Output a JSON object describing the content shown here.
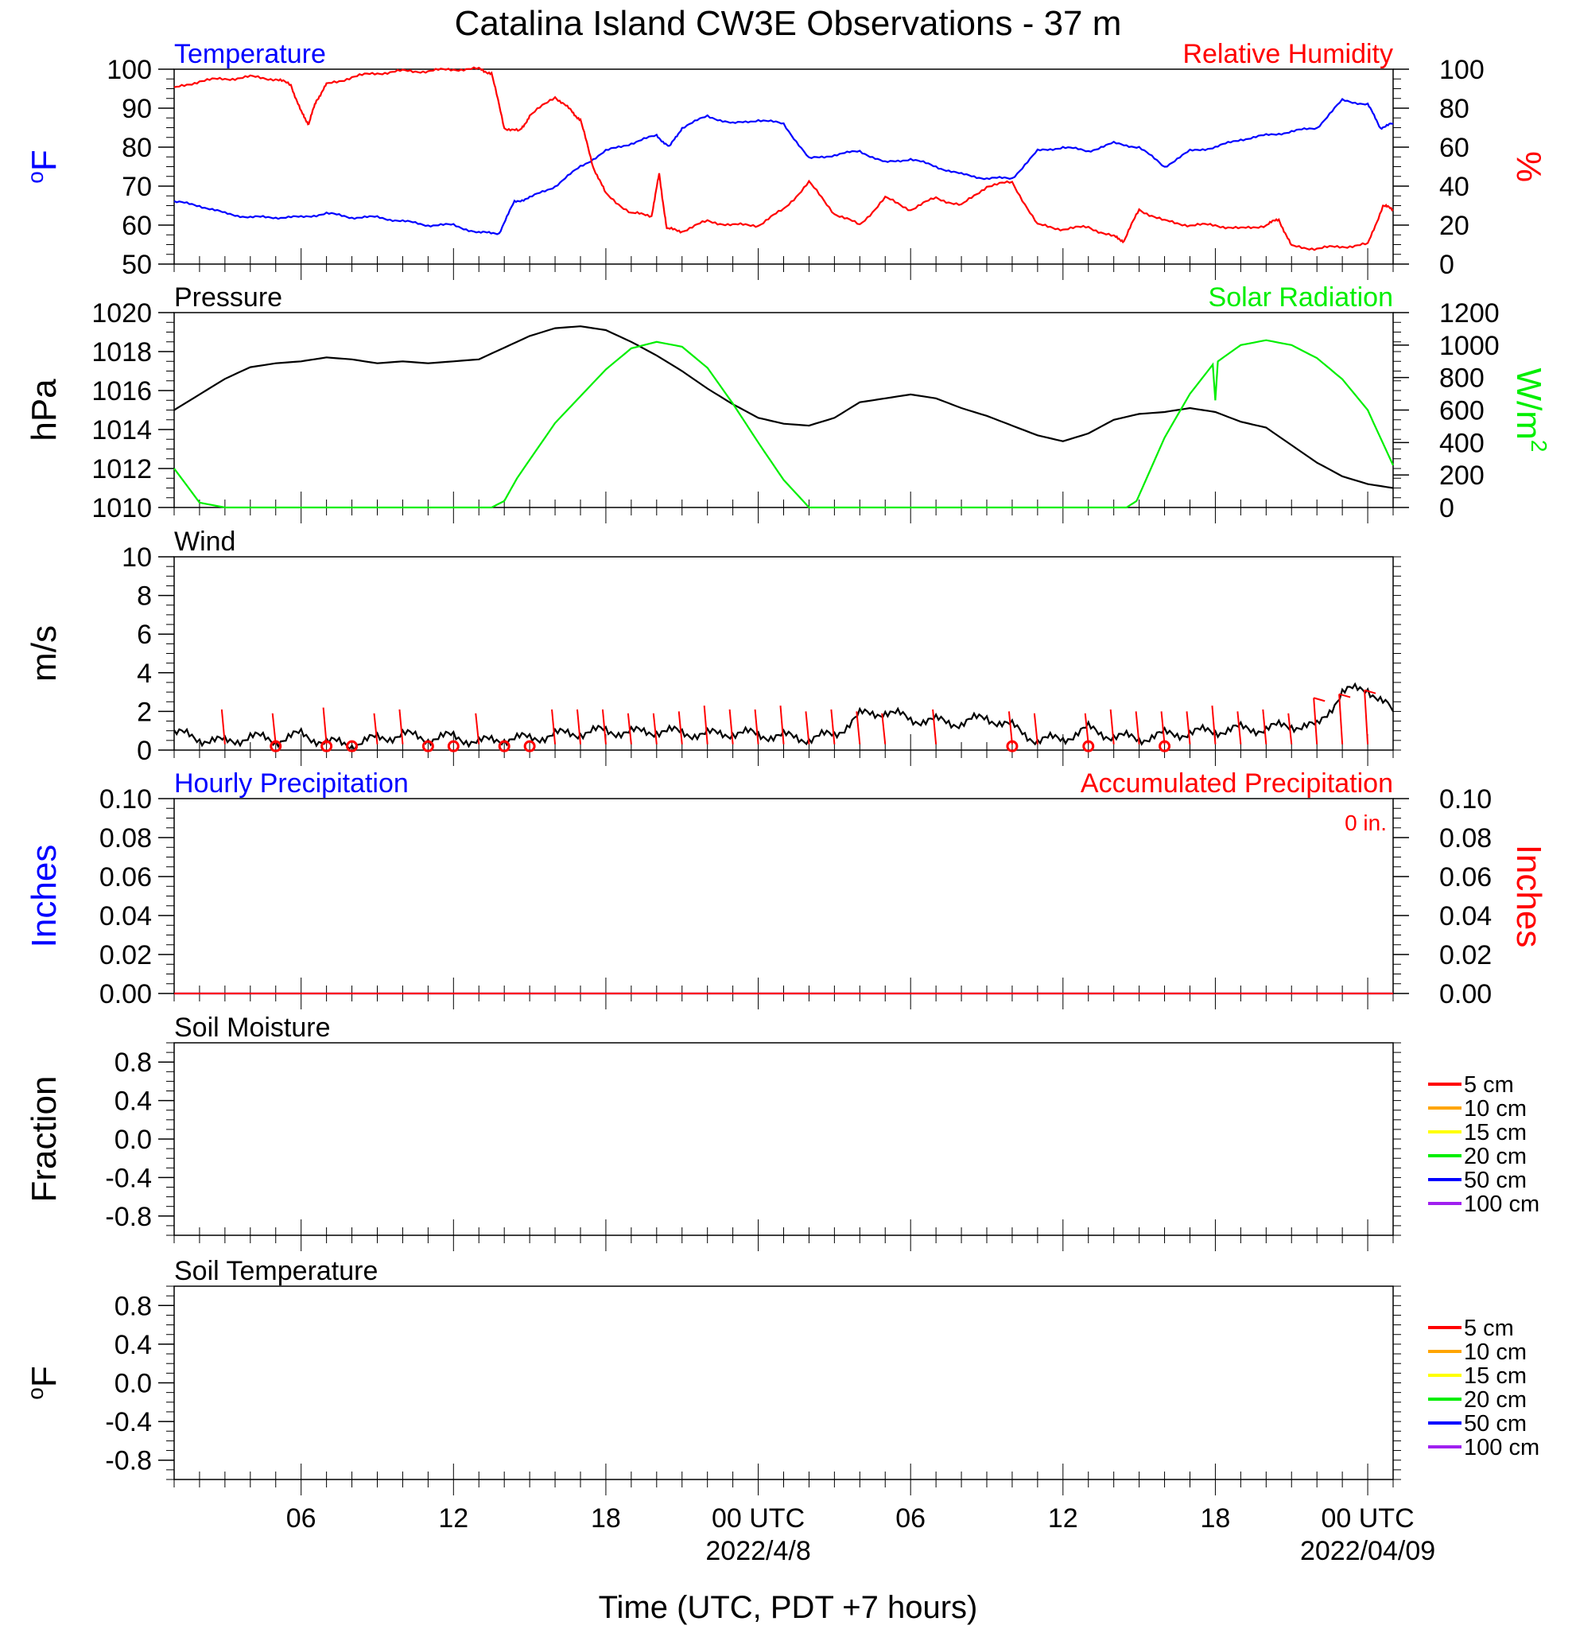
{
  "page_title": "Catalina Island CW3E Observations - 37 m",
  "x_axis": {
    "label": "Time (UTC, PDT +7 hours)",
    "tick_hours": [
      6,
      12,
      18,
      24,
      30,
      36,
      42,
      48
    ],
    "tick_labels": [
      "06",
      "12",
      "18",
      "00 UTC",
      "06",
      "12",
      "18",
      "00 UTC"
    ],
    "date_labels": [
      {
        "hour": 24,
        "text": "2022/4/8"
      },
      {
        "hour": 48,
        "text": "2022/04/09"
      }
    ],
    "range_hours": [
      1,
      49
    ]
  },
  "colors": {
    "temperature": "#0000ff",
    "humidity": "#ff0000",
    "pressure": "#000000",
    "solar": "#00ee00",
    "wind": "#000000",
    "wind_barb": "#ff0000",
    "precip_hourly": "#0000ff",
    "precip_accum": "#ff0000"
  },
  "legend": {
    "depths": [
      {
        "label": "5 cm",
        "color": "#ff0000"
      },
      {
        "label": "10 cm",
        "color": "#ffa500"
      },
      {
        "label": "15 cm",
        "color": "#ffff00"
      },
      {
        "label": "20 cm",
        "color": "#00ee00"
      },
      {
        "label": "50 cm",
        "color": "#0000ff"
      },
      {
        "label": "100 cm",
        "color": "#a020f0"
      }
    ]
  },
  "chart_data": [
    {
      "type": "line",
      "panel": "temperature-humidity",
      "left_title": "Temperature",
      "right_title": "Relative Humidity",
      "ylabel_left": "oF",
      "ylabel_right": "%",
      "ylim_left": [
        50,
        100
      ],
      "ylim_right": [
        0,
        100
      ],
      "yticks_left": [
        "50",
        "60",
        "70",
        "80",
        "90",
        "100"
      ],
      "yticks_right": [
        "0",
        "20",
        "40",
        "60",
        "80",
        "100"
      ],
      "series": [
        {
          "name": "Temperature",
          "axis": "left",
          "x": [
            1,
            2,
            3,
            4,
            5,
            6,
            7,
            8,
            9,
            10,
            11,
            12,
            13,
            13.8,
            14.4,
            15,
            16,
            17,
            18,
            19,
            20,
            20.5,
            21,
            22,
            23,
            24,
            25,
            26,
            27,
            28,
            29,
            30,
            31,
            32,
            33,
            34,
            35,
            36,
            37,
            38,
            39,
            40,
            41,
            42,
            43,
            44,
            45,
            46,
            47,
            48,
            48.5,
            49
          ],
          "values": [
            66,
            65,
            63,
            62,
            62,
            62,
            63,
            62,
            62,
            61,
            60,
            60,
            58,
            58,
            66,
            67,
            70,
            75,
            79,
            81,
            83,
            80,
            85,
            88,
            86,
            87,
            86,
            77,
            78,
            79,
            76,
            77,
            75,
            73,
            72,
            72,
            79,
            80,
            79,
            81,
            80,
            75,
            79,
            80,
            82,
            83,
            84,
            85,
            92,
            91,
            85,
            86
          ]
        },
        {
          "name": "Relative Humidity",
          "axis": "right",
          "x": [
            1,
            2,
            3,
            4,
            5,
            5.6,
            6,
            6.3,
            6.6,
            7,
            8,
            9,
            10,
            11,
            12,
            13,
            13.5,
            14,
            14.6,
            15,
            16,
            16.6,
            17,
            17.5,
            18,
            19,
            19.8,
            20.1,
            20.4,
            21,
            22,
            23,
            24,
            25,
            26,
            27,
            28,
            29,
            30,
            31,
            32,
            33,
            34,
            35,
            36,
            37,
            38,
            38.4,
            39,
            40,
            41,
            42,
            43,
            44,
            44.5,
            45,
            46,
            47,
            48,
            48.6,
            49
          ],
          "values": [
            90,
            94,
            95,
            96,
            95,
            92,
            78,
            72,
            84,
            92,
            96,
            98,
            99,
            99,
            100,
            100,
            98,
            70,
            68,
            76,
            86,
            79,
            74,
            50,
            36,
            26,
            25,
            46,
            18,
            17,
            22,
            20,
            20,
            28,
            42,
            26,
            20,
            34,
            28,
            34,
            30,
            40,
            42,
            20,
            18,
            19,
            14,
            12,
            28,
            22,
            20,
            20,
            18,
            20,
            23,
            9,
            8,
            9,
            10,
            30,
            28
          ]
        }
      ]
    },
    {
      "type": "line",
      "panel": "pressure-solar",
      "left_title": "Pressure",
      "right_title": "Solar Radiation",
      "ylabel_left": "hPa",
      "ylabel_right": "W/m",
      "ylabel_right_sup": "2",
      "ylim_left": [
        1010,
        1020
      ],
      "ylim_right": [
        0,
        1200
      ],
      "yticks_left": [
        "1010",
        "1012",
        "1014",
        "1016",
        "1018",
        "1020"
      ],
      "yticks_right": [
        "0",
        "200",
        "400",
        "600",
        "800",
        "1000",
        "1200"
      ],
      "series": [
        {
          "name": "Pressure",
          "axis": "left",
          "x": [
            1,
            2,
            3,
            4,
            5,
            6,
            7,
            8,
            9,
            10,
            11,
            12,
            13,
            14,
            15,
            16,
            17,
            18,
            19,
            20,
            21,
            22,
            23,
            24,
            25,
            26,
            27,
            28,
            29,
            30,
            31,
            32,
            33,
            34,
            35,
            36,
            37,
            38,
            39,
            40,
            41,
            42,
            43,
            44,
            45,
            46,
            47,
            48,
            49
          ],
          "values": [
            1015,
            1015.8,
            1016.6,
            1017.2,
            1017.4,
            1017.5,
            1017.7,
            1017.6,
            1017.4,
            1017.5,
            1017.4,
            1017.5,
            1017.6,
            1018.2,
            1018.8,
            1019.2,
            1019.3,
            1019.1,
            1018.5,
            1017.8,
            1017,
            1016.1,
            1015.3,
            1014.6,
            1014.3,
            1014.2,
            1014.6,
            1015.4,
            1015.6,
            1015.8,
            1015.6,
            1015.1,
            1014.7,
            1014.2,
            1013.7,
            1013.4,
            1013.8,
            1014.5,
            1014.8,
            1014.9,
            1015.1,
            1014.9,
            1014.4,
            1014.1,
            1013.2,
            1012.3,
            1011.6,
            1011.2,
            1011
          ]
        },
        {
          "name": "Solar Radiation",
          "axis": "right",
          "x": [
            1,
            2,
            3,
            13.5,
            14,
            14.5,
            16,
            18,
            19,
            20,
            21,
            22,
            23,
            24,
            25,
            26,
            38.5,
            38.9,
            40,
            41,
            41.9,
            42,
            42.1,
            43,
            44,
            45,
            46,
            47,
            48,
            49
          ],
          "values": [
            240,
            30,
            0,
            0,
            40,
            180,
            520,
            850,
            980,
            1020,
            990,
            860,
            640,
            400,
            170,
            0,
            0,
            40,
            430,
            700,
            880,
            660,
            900,
            1000,
            1030,
            1000,
            920,
            790,
            600,
            260
          ]
        }
      ]
    },
    {
      "type": "line",
      "panel": "wind",
      "left_title": "Wind",
      "ylabel_left": "m/s",
      "ylim_left": [
        0,
        10
      ],
      "yticks_left": [
        "0",
        "2",
        "4",
        "6",
        "8",
        "10"
      ],
      "series": [
        {
          "name": "Wind speed",
          "axis": "left",
          "x": [
            1,
            2,
            3,
            4,
            5,
            6,
            7,
            8,
            9,
            10,
            11,
            12,
            13,
            14,
            15,
            16,
            17,
            18,
            19,
            20,
            21,
            22,
            23,
            24,
            25,
            26,
            27,
            28,
            29,
            30,
            31,
            32,
            33,
            34,
            35,
            36,
            37,
            38,
            39,
            40,
            41,
            42,
            43,
            44,
            45,
            46,
            47,
            48,
            49
          ],
          "values": [
            0.9,
            0.6,
            0.4,
            0.7,
            0.5,
            0.8,
            0.4,
            0.3,
            0.6,
            0.8,
            0.6,
            0.7,
            0.4,
            0.6,
            0.6,
            0.8,
            0.9,
            1.0,
            0.9,
            1.0,
            0.9,
            0.8,
            0.9,
            0.8,
            0.7,
            0.6,
            0.8,
            1.8,
            2.0,
            1.6,
            1.5,
            1.4,
            1.7,
            1.2,
            0.5,
            0.6,
            1.1,
            0.7,
            0.6,
            0.8,
            0.9,
            1.0,
            1.1,
            1.1,
            1.3,
            1.2,
            3.0,
            3.2,
            2.0
          ]
        }
      ],
      "barbs": {
        "x": [
          3,
          5,
          7,
          9,
          10,
          13,
          16,
          17,
          18,
          19,
          20,
          21,
          22,
          23,
          24,
          25,
          26,
          27,
          28,
          29,
          31,
          34,
          35,
          37,
          38,
          39,
          40,
          41,
          42,
          43,
          44,
          45,
          46,
          47,
          48
        ],
        "values": [
          1.8,
          1.6,
          1.9,
          1.6,
          1.8,
          1.6,
          1.8,
          1.8,
          1.8,
          1.6,
          1.6,
          1.7,
          2.0,
          1.8,
          1.8,
          2.0,
          1.7,
          1.8,
          1.7,
          1.6,
          1.8,
          1.7,
          1.6,
          1.6,
          1.8,
          1.7,
          1.7,
          1.7,
          2.0,
          1.7,
          1.8,
          1.6,
          2.4,
          2.6,
          2.8
        ]
      },
      "calm_hours": [
        5,
        7,
        8,
        11,
        12,
        14,
        15,
        34,
        37,
        40
      ]
    },
    {
      "type": "line",
      "panel": "precipitation",
      "left_title": "Hourly Precipitation",
      "right_title": "Accumulated Precipitation",
      "total_label": "0 in.",
      "ylabel_left": "Inches",
      "ylabel_right": "Inches",
      "ylim_left": [
        0,
        0.1
      ],
      "ylim_right": [
        0,
        0.1
      ],
      "yticks_left": [
        "0.00",
        "0.02",
        "0.04",
        "0.06",
        "0.08",
        "0.10"
      ],
      "yticks_right": [
        "0.00",
        "0.02",
        "0.04",
        "0.06",
        "0.08",
        "0.10"
      ],
      "series": [
        {
          "name": "Hourly Precipitation",
          "axis": "left",
          "x": [
            1,
            49
          ],
          "values": [
            0,
            0
          ]
        },
        {
          "name": "Accumulated Precipitation",
          "axis": "right",
          "x": [
            1,
            49
          ],
          "values": [
            0,
            0
          ]
        }
      ]
    },
    {
      "type": "line",
      "panel": "soil-moisture",
      "left_title": "Soil Moisture",
      "ylabel_left": "Fraction",
      "ylim_left": [
        -1,
        1
      ],
      "yticks_left": [
        "-0.8",
        "-0.4",
        "0.0",
        "0.4",
        "0.8"
      ],
      "series": []
    },
    {
      "type": "line",
      "panel": "soil-temperature",
      "left_title": "Soil Temperature",
      "ylabel_left": "oF",
      "ylim_left": [
        -1,
        1
      ],
      "yticks_left": [
        "-0.8",
        "-0.4",
        "0.0",
        "0.4",
        "0.8"
      ],
      "series": []
    }
  ]
}
